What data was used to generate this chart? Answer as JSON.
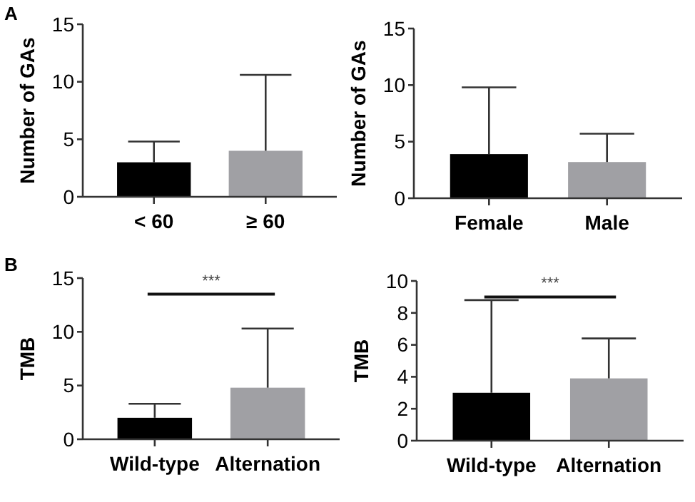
{
  "chart_data": [
    {
      "type": "bar",
      "title": "A",
      "categories": [
        "< 60",
        "≥ 60"
      ],
      "ylabel": "Number of GAs",
      "colors": [
        "#000000",
        "#a0a0a4"
      ],
      "values": [
        3.0,
        4.0
      ],
      "errors": [
        [
          3.0,
          4.8
        ],
        [
          4.0,
          10.6
        ]
      ],
      "ylim": [
        0,
        15
      ],
      "yticks": [
        0,
        5,
        10,
        15
      ]
    },
    {
      "type": "bar",
      "categories": [
        "Female",
        "Male"
      ],
      "ylabel": "Number of GAs",
      "colors": [
        "#000000",
        "#a0a0a4"
      ],
      "values": [
        3.9,
        3.2
      ],
      "errors": [
        [
          3.9,
          9.8
        ],
        [
          3.2,
          5.7
        ]
      ],
      "ylim": [
        0,
        15
      ],
      "yticks": [
        0,
        5,
        10,
        15
      ]
    },
    {
      "type": "bar",
      "title": "B",
      "categories": [
        "Wild-type",
        "Alternation"
      ],
      "ylabel": "TMB",
      "colors": [
        "#000000",
        "#a0a0a4"
      ],
      "values": [
        2.0,
        4.8
      ],
      "errors": [
        [
          2.0,
          3.3
        ],
        [
          4.8,
          10.3
        ]
      ],
      "ylim": [
        0,
        15
      ],
      "yticks": [
        0,
        5,
        10,
        15
      ],
      "annotations": [
        "***"
      ]
    },
    {
      "type": "bar",
      "categories": [
        "Wild-type",
        "Alternation"
      ],
      "ylabel": "TMB",
      "colors": [
        "#000000",
        "#a0a0a4"
      ],
      "values": [
        3.0,
        3.9
      ],
      "errors": [
        [
          3.0,
          8.8
        ],
        [
          3.9,
          6.4
        ]
      ],
      "ylim": [
        0,
        10
      ],
      "yticks": [
        0,
        2,
        4,
        6,
        8,
        10
      ],
      "annotations": [
        "***"
      ]
    }
  ]
}
